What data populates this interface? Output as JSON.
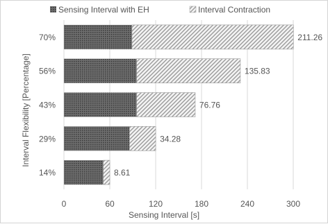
{
  "chart_data": {
    "type": "bar",
    "orientation": "horizontal",
    "stacked": true,
    "categories": [
      "14%",
      "29%",
      "43%",
      "56%",
      "70%"
    ],
    "series": [
      {
        "name": "Sensing Interval with EH",
        "values": [
          51.4,
          85.8,
          95.0,
          95.0,
          89.0
        ]
      },
      {
        "name": "Interval Contraction",
        "values": [
          8.61,
          34.28,
          76.76,
          135.83,
          211.26
        ]
      }
    ],
    "data_labels": [
      "8.61",
      "34.28",
      "76.76",
      "135.83",
      "211.26"
    ],
    "xlabel": "Sensing Interval [s]",
    "ylabel": "Interval Flexibility [Percentage]",
    "xlim": [
      0,
      300
    ],
    "xticks": [
      0,
      60,
      120,
      180,
      240,
      300
    ],
    "grid": "vertical",
    "legend_position": "top",
    "colors": {
      "series1_fill": "#6e6e6e",
      "series1_dot": "#3a3a3a",
      "series2_fill": "#f4f4f4",
      "series2_hatch": "#9a9a9a",
      "grid": "#d9d9d9",
      "text": "#555555"
    }
  }
}
